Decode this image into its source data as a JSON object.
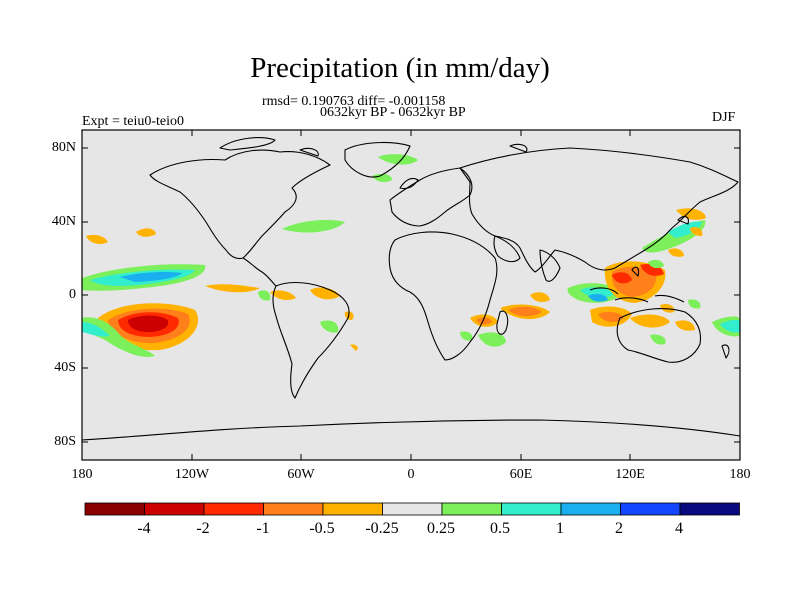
{
  "header": {
    "title": "Precipitation (in mm/day)",
    "stats": "rmsd= 0.190763 diff= -0.001158",
    "period": "0632kyr BP - 0632kyr BP",
    "experiment": "Expt = teiu0-teio0",
    "season": "DJF"
  },
  "map": {
    "background_color": "#e6e6e6",
    "lat_labels": [
      "80N",
      "40N",
      "0",
      "40S",
      "80S"
    ],
    "lon_labels": [
      "180",
      "120W",
      "60W",
      "0",
      "60E",
      "120E",
      "180"
    ]
  },
  "colorbar": {
    "labels": [
      "-4",
      "-2",
      "-1",
      "-0.5",
      "-0.25",
      "0.25",
      "0.5",
      "1",
      "2",
      "4"
    ],
    "colors": [
      "#8b0000",
      "#cc0000",
      "#ff2a00",
      "#ff7f1a",
      "#ffb300",
      "#e6e6e6",
      "#7cf05a",
      "#33eecc",
      "#1ab0f0",
      "#1446ff",
      "#0a0a80"
    ]
  }
}
